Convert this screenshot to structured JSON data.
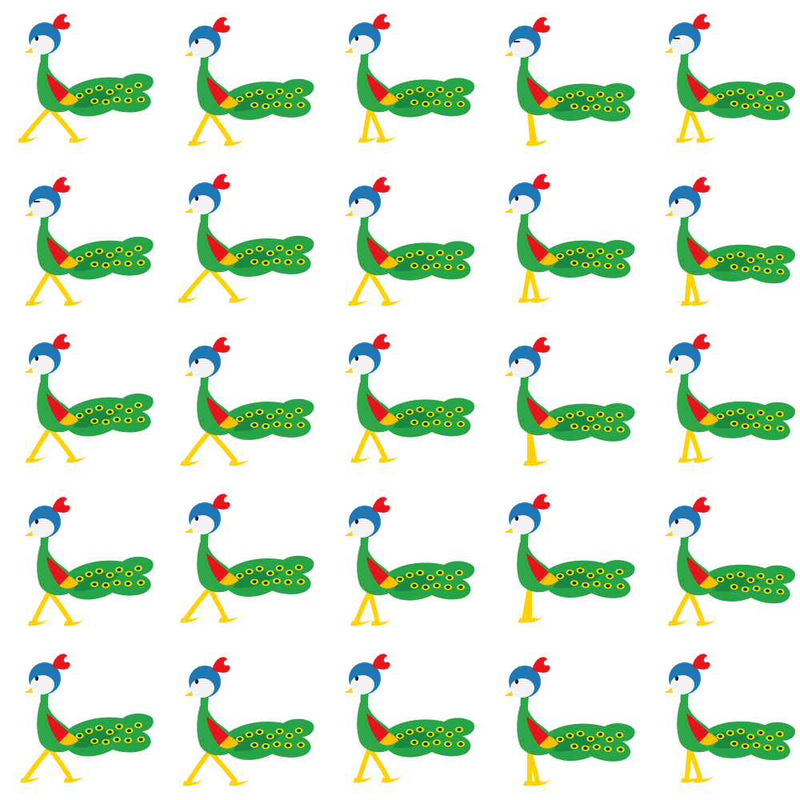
{
  "sprite_sheet": {
    "subject": "peacock-walk-cycle",
    "rows": 5,
    "columns": 5,
    "frame_count": 25,
    "background_color": "#ffffff",
    "colors": {
      "head_blue": "#1f77b4",
      "face_white": "#f2f2f2",
      "crest_red": "#e8131b",
      "beak_yellow": "#ffd200",
      "body_green": "#2ea64a",
      "wing_red": "#e8131b",
      "wing_yellow": "#f5c200",
      "tail_green": "#26a447",
      "tail_dark_green": "#13713a",
      "eye_spot_yellow": "#e8e200",
      "eye_spot_dark": "#0d3b24",
      "leg_yellow": "#ffd200"
    }
  }
}
